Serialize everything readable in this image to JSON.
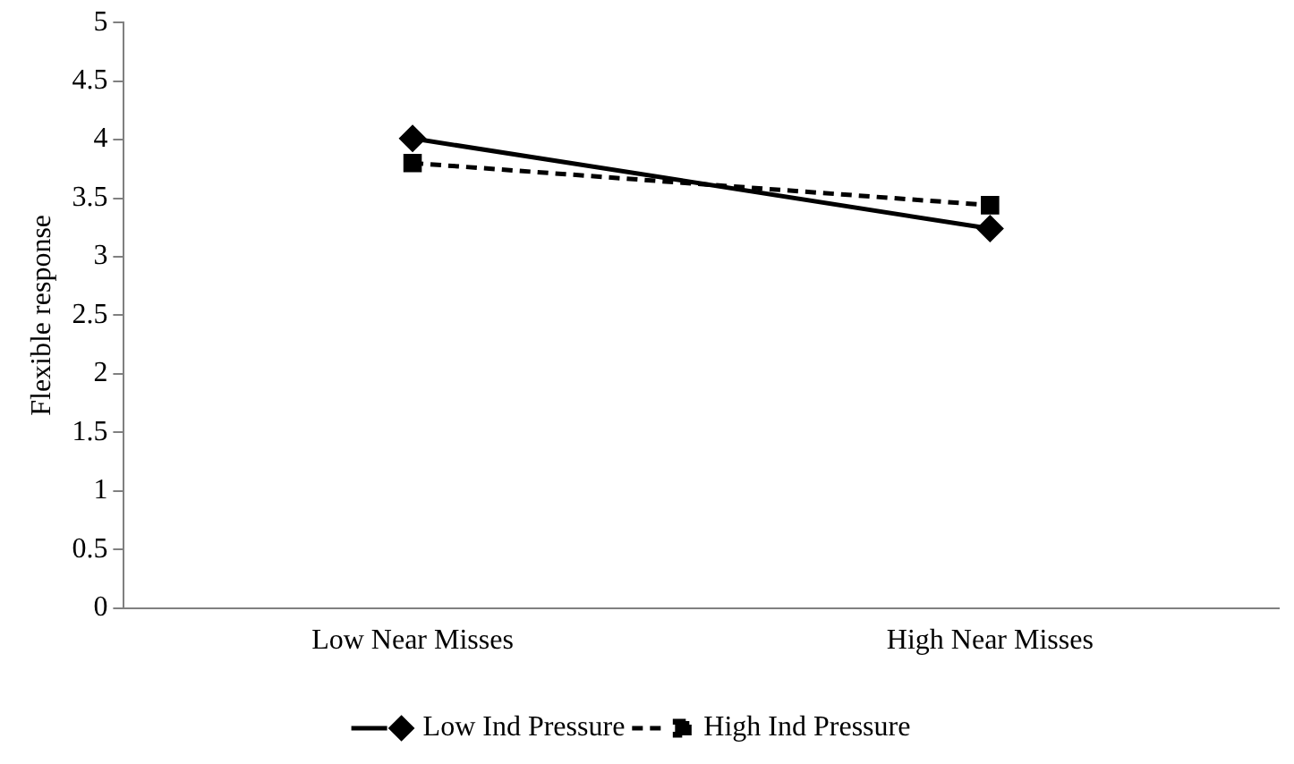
{
  "chart_data": {
    "type": "line",
    "ylabel": "Flexible response",
    "categories": [
      "Low Near Misses",
      "High Near Misses"
    ],
    "series": [
      {
        "name": "Low Ind Pressure",
        "color": "#000000",
        "values": [
          4.01,
          3.24
        ],
        "marker": "diamond",
        "line_style": "solid"
      },
      {
        "name": "High Ind Pressure",
        "color": "#000000",
        "values": [
          3.8,
          3.44
        ],
        "marker": "square",
        "line_style": "dashed"
      }
    ],
    "ylim": [
      0,
      5
    ],
    "yticks": [
      0,
      0.5,
      1,
      1.5,
      2,
      2.5,
      3,
      3.5,
      4,
      4.5,
      5
    ],
    "grid": false,
    "legend": "bottom"
  }
}
